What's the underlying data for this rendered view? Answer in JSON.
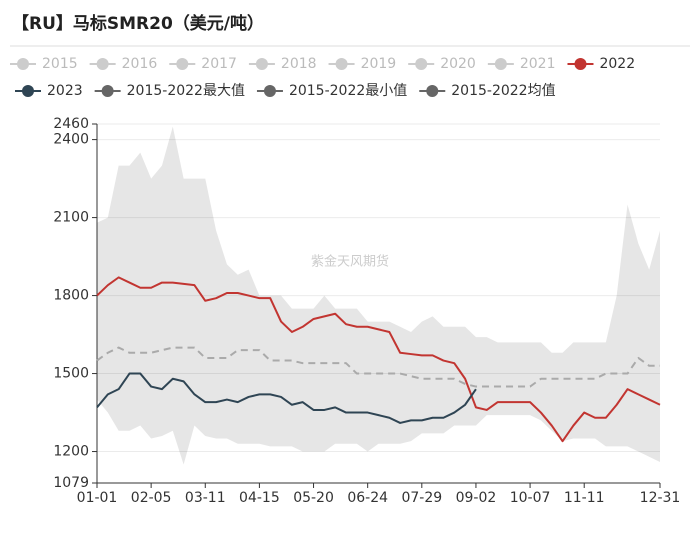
{
  "chart_data": {
    "type": "line",
    "title": "【RU】马标SMR20（美元/吨）",
    "watermark": "紫金天风期货",
    "categories": [
      "01-01",
      null,
      null,
      null,
      null,
      "02-05",
      null,
      null,
      null,
      null,
      "03-11",
      null,
      null,
      null,
      null,
      "04-15",
      null,
      null,
      null,
      null,
      "05-20",
      null,
      null,
      null,
      null,
      "06-24",
      null,
      null,
      null,
      null,
      "07-29",
      null,
      null,
      null,
      null,
      "09-02",
      null,
      null,
      null,
      null,
      "10-07",
      null,
      null,
      null,
      null,
      "11-11",
      null,
      null,
      null,
      null,
      null,
      null,
      "12-31"
    ],
    "inactive_legend": [
      {
        "name": "2015",
        "color": "#cccccc"
      },
      {
        "name": "2016",
        "color": "#cccccc"
      },
      {
        "name": "2017",
        "color": "#cccccc"
      },
      {
        "name": "2018",
        "color": "#cccccc"
      },
      {
        "name": "2019",
        "color": "#cccccc"
      },
      {
        "name": "2020",
        "color": "#cccccc"
      },
      {
        "name": "2021",
        "color": "#cccccc"
      }
    ],
    "band_color": "#e6e6e6",
    "series": [
      {
        "name": "2022",
        "color": "#c23531",
        "style": "line",
        "values": [
          1800,
          1840,
          1870,
          1850,
          1830,
          1830,
          1850,
          1850,
          1845,
          1840,
          1780,
          1790,
          1810,
          1810,
          1800,
          1790,
          1790,
          1700,
          1660,
          1680,
          1710,
          1720,
          1730,
          1690,
          1680,
          1680,
          1670,
          1660,
          1580,
          1575,
          1570,
          1570,
          1550,
          1540,
          1480,
          1370,
          1360,
          1390,
          1390,
          1390,
          1390,
          1350,
          1300,
          1240,
          1300,
          1350,
          1330,
          1330,
          1380,
          1440,
          1420,
          1400,
          1380
        ]
      },
      {
        "name": "2023",
        "color": "#2f4554",
        "style": "line",
        "values": [
          1370,
          1420,
          1440,
          1500,
          1500,
          1450,
          1440,
          1480,
          1470,
          1420,
          1390,
          1390,
          1400,
          1390,
          1410,
          1420,
          1420,
          1410,
          1380,
          1390,
          1360,
          1360,
          1370,
          1350,
          1350,
          1350,
          1340,
          1330,
          1310,
          1320,
          1320,
          1330,
          1330,
          1350,
          1380,
          1440,
          null,
          null,
          null,
          null,
          null,
          null,
          null,
          null,
          null,
          null,
          null,
          null,
          null,
          null,
          null,
          null,
          null
        ]
      },
      {
        "name": "2015-2022最大值",
        "color": "#666666",
        "style": "band-top",
        "values": [
          2080,
          2100,
          2300,
          2300,
          2350,
          2250,
          2300,
          2450,
          2250,
          2250,
          2250,
          2050,
          1920,
          1880,
          1900,
          1800,
          1800,
          1800,
          1750,
          1750,
          1750,
          1800,
          1750,
          1750,
          1750,
          1700,
          1700,
          1700,
          1680,
          1660,
          1700,
          1720,
          1680,
          1680,
          1680,
          1640,
          1640,
          1620,
          1620,
          1620,
          1620,
          1620,
          1580,
          1580,
          1620,
          1620,
          1620,
          1620,
          1800,
          2150,
          2000,
          1900,
          2050
        ]
      },
      {
        "name": "2015-2022最小值",
        "color": "#666666",
        "style": "band-bottom",
        "values": [
          1400,
          1350,
          1280,
          1280,
          1300,
          1250,
          1260,
          1280,
          1150,
          1300,
          1260,
          1250,
          1250,
          1230,
          1230,
          1230,
          1220,
          1220,
          1220,
          1200,
          1200,
          1200,
          1230,
          1230,
          1230,
          1200,
          1230,
          1230,
          1230,
          1240,
          1270,
          1270,
          1270,
          1300,
          1300,
          1300,
          1340,
          1340,
          1340,
          1340,
          1340,
          1320,
          1280,
          1240,
          1250,
          1250,
          1250,
          1220,
          1220,
          1220,
          1200,
          1180,
          1160
        ]
      },
      {
        "name": "2015-2022均值",
        "color": "#666666",
        "style": "dashed",
        "dash_color": "#aaaaaa",
        "values": [
          1550,
          1580,
          1600,
          1580,
          1580,
          1580,
          1590,
          1600,
          1600,
          1600,
          1560,
          1560,
          1560,
          1590,
          1590,
          1590,
          1550,
          1550,
          1550,
          1540,
          1540,
          1540,
          1540,
          1540,
          1500,
          1500,
          1500,
          1500,
          1500,
          1490,
          1480,
          1480,
          1480,
          1480,
          1460,
          1450,
          1450,
          1450,
          1450,
          1450,
          1450,
          1480,
          1480,
          1480,
          1480,
          1480,
          1480,
          1500,
          1500,
          1500,
          1560,
          1530,
          1530
        ]
      }
    ],
    "ylim": [
      1079,
      2460
    ],
    "yticks": [
      1079,
      1200,
      1500,
      1800,
      2100,
      2400,
      2460
    ],
    "grid": true
  }
}
